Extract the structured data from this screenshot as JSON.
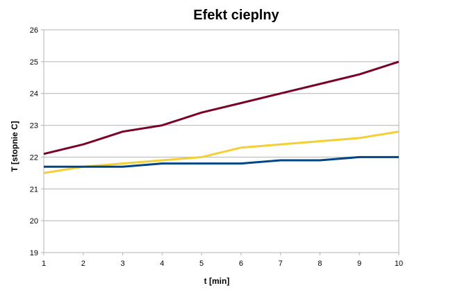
{
  "chart_data": {
    "type": "line",
    "title": "Efekt cieplny",
    "xlabel": "t [min]",
    "ylabel": "T [stopnie C]",
    "x": [
      1,
      2,
      3,
      4,
      5,
      6,
      7,
      8,
      9,
      10
    ],
    "xlim": [
      1,
      10
    ],
    "ylim": [
      19,
      26
    ],
    "yticks": [
      19,
      20,
      21,
      22,
      23,
      24,
      25,
      26
    ],
    "grid": true,
    "legend": "none",
    "series": [
      {
        "color": "#7a0026",
        "values": [
          22.1,
          22.4,
          22.8,
          23.0,
          23.4,
          23.7,
          24.0,
          24.3,
          24.6,
          25.0
        ]
      },
      {
        "color": "#f5cf31",
        "values": [
          21.5,
          21.7,
          21.8,
          21.9,
          22.0,
          22.3,
          22.4,
          22.5,
          22.6,
          22.8
        ]
      },
      {
        "color": "#004586",
        "values": [
          21.7,
          21.7,
          21.7,
          21.8,
          21.8,
          21.8,
          21.9,
          21.9,
          22.0,
          22.0
        ]
      }
    ]
  }
}
